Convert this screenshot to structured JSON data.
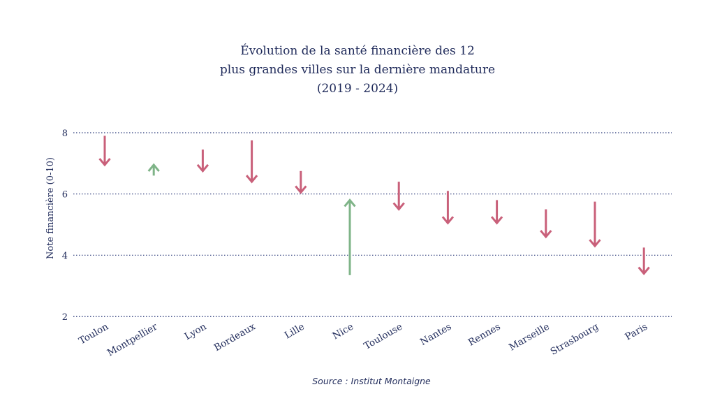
{
  "title_lines": [
    "Évolution de la santé financière des 12",
    "plus grandes villes sur la dernière mandature",
    "(2019 - 2024)"
  ],
  "source": "Source : Institut Montaigne",
  "colors": {
    "decrease": "#c9607a",
    "increase": "#7fb488",
    "text": "#1f2a5a",
    "grid": "#2b3a7a"
  },
  "chart_data": {
    "type": "arrow",
    "title": "Évolution de la santé financière des 12 plus grandes villes sur la dernière mandature (2019 - 2024)",
    "ylabel": "Note financière (0-10)",
    "xlabel": "",
    "ylim": [
      2,
      8
    ],
    "yticks": [
      2,
      4,
      6,
      8
    ],
    "grid": "horizontal dotted",
    "categories": [
      "Toulon",
      "Montpellier",
      "Lyon",
      "Bordeaux",
      "Lille",
      "Nice",
      "Toulouse",
      "Nantes",
      "Rennes",
      "Marseille",
      "Strasbourg",
      "Paris"
    ],
    "series": [
      {
        "name": "2019",
        "values": [
          7.9,
          6.6,
          7.45,
          7.75,
          6.75,
          3.35,
          6.4,
          6.1,
          5.8,
          5.5,
          5.75,
          4.25
        ]
      },
      {
        "name": "2024",
        "values": [
          6.95,
          6.95,
          6.75,
          6.4,
          6.05,
          5.8,
          5.5,
          5.05,
          5.05,
          4.6,
          4.3,
          3.4
        ]
      }
    ]
  }
}
